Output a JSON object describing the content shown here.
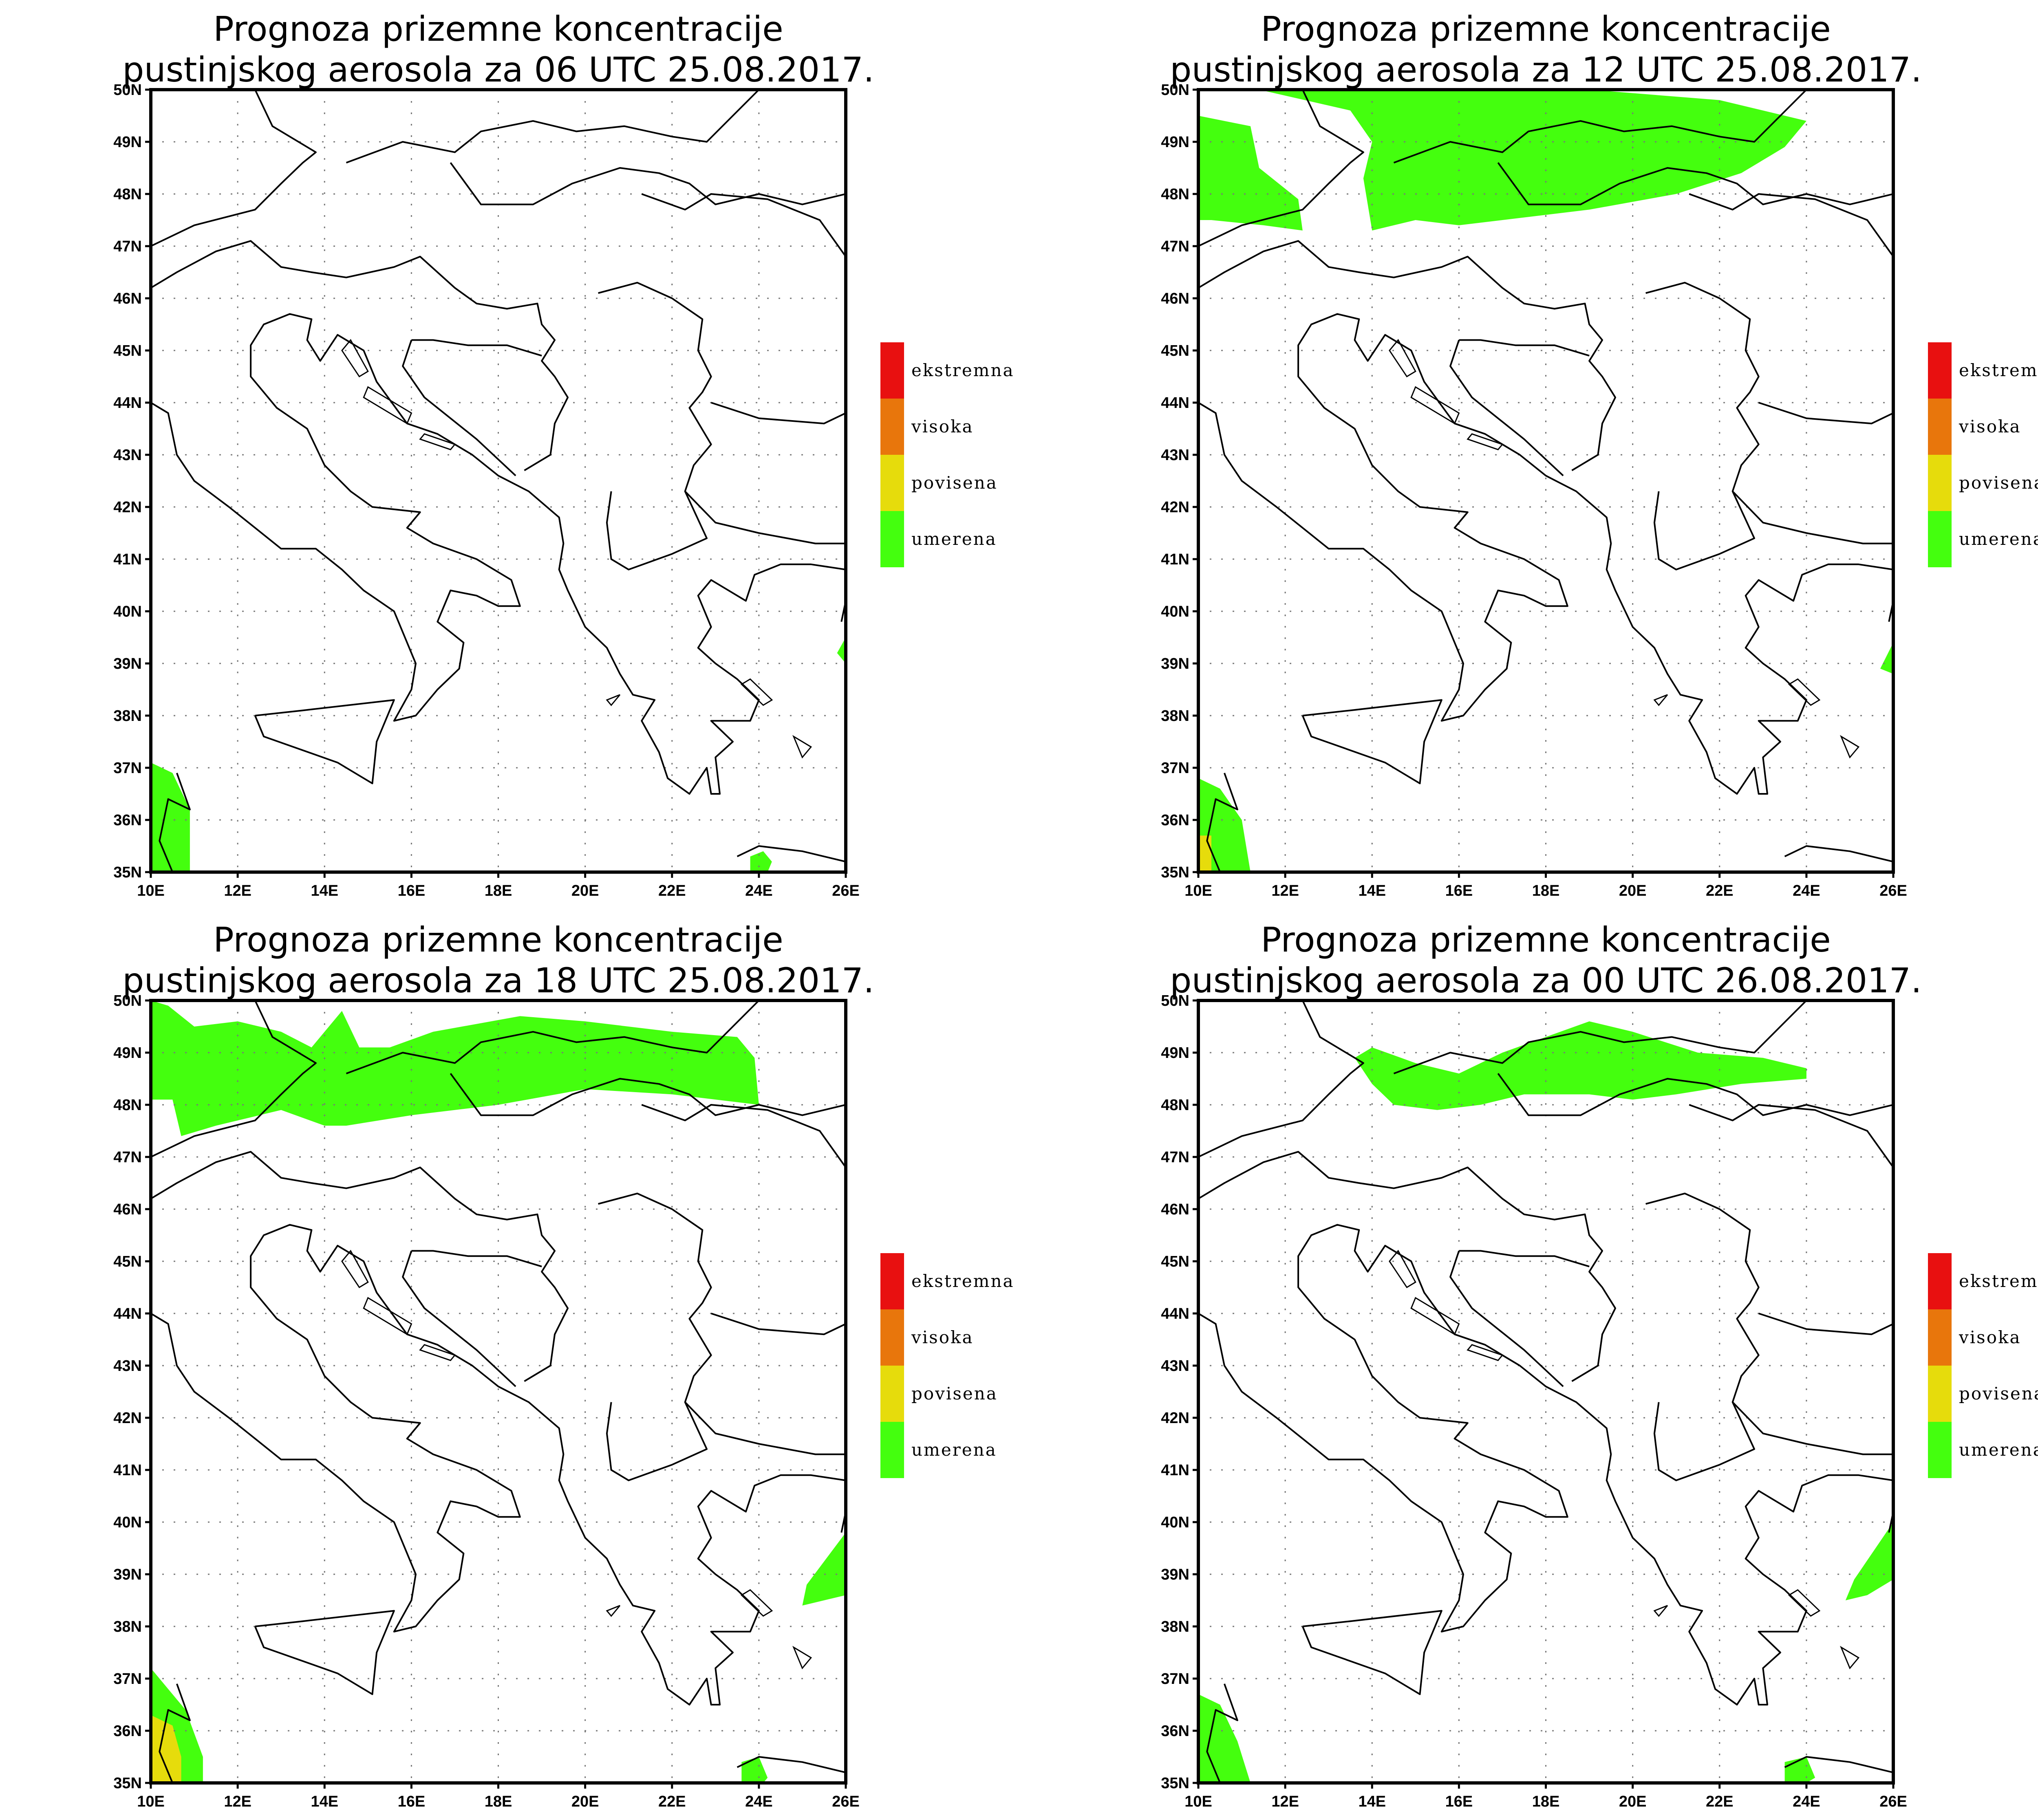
{
  "panels": [
    {
      "title_line1": "Prognoza prizemne koncentracije",
      "title_line2": "pustinjskog aerosola za 06 UTC 25.08.2017.",
      "blobs": [
        {
          "level": "umerena",
          "pts": [
            [
              10.0,
              35.0
            ],
            [
              10.0,
              37.1
            ],
            [
              10.5,
              36.9
            ],
            [
              10.9,
              36.2
            ],
            [
              10.9,
              35.0
            ]
          ]
        },
        {
          "level": "umerena",
          "pts": [
            [
              23.8,
              35.0
            ],
            [
              23.8,
              35.3
            ],
            [
              24.1,
              35.4
            ],
            [
              24.3,
              35.2
            ],
            [
              24.2,
              35.0
            ]
          ]
        },
        {
          "level": "umerena",
          "pts": [
            [
              25.8,
              39.2
            ],
            [
              26.0,
              39.5
            ],
            [
              26.0,
              39.0
            ]
          ]
        }
      ]
    },
    {
      "title_line1": "Prognoza prizemne koncentracije",
      "title_line2": "pustinjskog aerosola za 12 UTC 25.08.2017.",
      "blobs": [
        {
          "level": "umerena",
          "pts": [
            [
              10.0,
              49.5
            ],
            [
              11.2,
              49.3
            ],
            [
              11.4,
              48.5
            ],
            [
              12.3,
              47.9
            ],
            [
              12.4,
              47.3
            ],
            [
              11.5,
              47.4
            ],
            [
              10.3,
              47.5
            ],
            [
              10.0,
              47.5
            ]
          ]
        },
        {
          "level": "umerena",
          "pts": [
            [
              11.4,
              50.0
            ],
            [
              13.5,
              49.6
            ],
            [
              14.0,
              49.0
            ],
            [
              13.8,
              48.3
            ],
            [
              14.0,
              47.3
            ],
            [
              15.0,
              47.5
            ],
            [
              16.0,
              47.4
            ],
            [
              17.0,
              47.5
            ],
            [
              19.0,
              47.7
            ],
            [
              21.0,
              48.0
            ],
            [
              22.5,
              48.4
            ],
            [
              23.5,
              48.9
            ],
            [
              24.0,
              49.4
            ],
            [
              22.0,
              49.8
            ],
            [
              19.0,
              50.0
            ]
          ]
        },
        {
          "level": "umerena",
          "pts": [
            [
              10.0,
              35.0
            ],
            [
              10.0,
              36.8
            ],
            [
              10.5,
              36.6
            ],
            [
              11.0,
              36.0
            ],
            [
              11.2,
              35.0
            ]
          ]
        },
        {
          "level": "povisena",
          "pts": [
            [
              10.0,
              35.0
            ],
            [
              10.0,
              35.7
            ],
            [
              10.3,
              35.7
            ],
            [
              10.3,
              35.0
            ]
          ]
        },
        {
          "level": "umerena",
          "pts": [
            [
              25.7,
              38.9
            ],
            [
              26.0,
              39.4
            ],
            [
              26.0,
              38.8
            ]
          ]
        }
      ]
    },
    {
      "title_line1": "Prognoza prizemne koncentracije",
      "title_line2": "pustinjskog aerosola za 18 UTC 25.08.2017.",
      "blobs": [
        {
          "level": "umerena",
          "pts": [
            [
              10.0,
              50.0
            ],
            [
              10.4,
              49.9
            ],
            [
              11.0,
              49.5
            ],
            [
              12.0,
              49.6
            ],
            [
              13.0,
              49.4
            ],
            [
              13.7,
              49.1
            ],
            [
              14.4,
              49.8
            ],
            [
              14.8,
              49.1
            ],
            [
              15.5,
              49.1
            ],
            [
              16.5,
              49.4
            ],
            [
              18.5,
              49.7
            ],
            [
              20.0,
              49.6
            ],
            [
              22.0,
              49.4
            ],
            [
              23.5,
              49.3
            ],
            [
              23.9,
              48.9
            ],
            [
              24.0,
              48.0
            ],
            [
              22.0,
              48.2
            ],
            [
              20.0,
              48.3
            ],
            [
              18.0,
              48.0
            ],
            [
              16.0,
              47.8
            ],
            [
              14.5,
              47.6
            ],
            [
              14.0,
              47.6
            ],
            [
              13.0,
              47.9
            ],
            [
              11.5,
              47.6
            ],
            [
              10.7,
              47.4
            ],
            [
              10.5,
              48.1
            ],
            [
              10.0,
              48.1
            ]
          ]
        },
        {
          "level": "umerena",
          "pts": [
            [
              10.0,
              35.0
            ],
            [
              10.0,
              37.2
            ],
            [
              10.8,
              36.4
            ],
            [
              11.2,
              35.5
            ],
            [
              11.2,
              35.0
            ]
          ]
        },
        {
          "level": "povisena",
          "pts": [
            [
              10.0,
              35.0
            ],
            [
              10.0,
              36.3
            ],
            [
              10.5,
              36.1
            ],
            [
              10.7,
              35.5
            ],
            [
              10.7,
              35.0
            ]
          ]
        },
        {
          "level": "umerena",
          "pts": [
            [
              23.6,
              35.0
            ],
            [
              23.6,
              35.4
            ],
            [
              24.0,
              35.5
            ],
            [
              24.2,
              35.1
            ],
            [
              24.1,
              35.0
            ]
          ]
        },
        {
          "level": "umerena",
          "pts": [
            [
              25.0,
              38.4
            ],
            [
              25.1,
              38.8
            ],
            [
              26.0,
              39.8
            ],
            [
              26.0,
              38.6
            ],
            [
              25.5,
              38.5
            ]
          ]
        }
      ]
    },
    {
      "title_line1": "Prognoza prizemne koncentracije",
      "title_line2": "pustinjskog aerosola za 00 UTC 26.08.2017.",
      "blobs": [
        {
          "level": "umerena",
          "pts": [
            [
              13.6,
              48.9
            ],
            [
              14.0,
              49.1
            ],
            [
              15.0,
              48.8
            ],
            [
              16.0,
              48.6
            ],
            [
              17.0,
              49.0
            ],
            [
              18.0,
              49.3
            ],
            [
              19.0,
              49.6
            ],
            [
              20.0,
              49.4
            ],
            [
              21.5,
              49.0
            ],
            [
              23.0,
              48.9
            ],
            [
              24.0,
              48.7
            ],
            [
              24.0,
              48.5
            ],
            [
              22.5,
              48.4
            ],
            [
              21.0,
              48.2
            ],
            [
              20.0,
              48.1
            ],
            [
              19.0,
              48.2
            ],
            [
              17.5,
              48.2
            ],
            [
              16.5,
              48.0
            ],
            [
              15.5,
              47.9
            ],
            [
              14.5,
              48.0
            ],
            [
              14.0,
              48.4
            ]
          ]
        },
        {
          "level": "umerena",
          "pts": [
            [
              10.0,
              35.0
            ],
            [
              10.0,
              36.7
            ],
            [
              10.5,
              36.5
            ],
            [
              10.9,
              35.8
            ],
            [
              11.2,
              35.0
            ]
          ]
        },
        {
          "level": "umerena",
          "pts": [
            [
              23.5,
              35.0
            ],
            [
              23.5,
              35.4
            ],
            [
              24.0,
              35.5
            ],
            [
              24.2,
              35.1
            ],
            [
              24.0,
              35.0
            ]
          ]
        },
        {
          "level": "umerena",
          "pts": [
            [
              24.9,
              38.5
            ],
            [
              25.1,
              38.9
            ],
            [
              26.0,
              40.0
            ],
            [
              26.0,
              38.9
            ],
            [
              25.4,
              38.6
            ]
          ]
        }
      ]
    }
  ],
  "map_extent": {
    "lon": [
      10,
      26
    ],
    "lat": [
      35,
      50
    ]
  },
  "x_ticks": [
    "10E",
    "12E",
    "14E",
    "16E",
    "18E",
    "20E",
    "22E",
    "24E",
    "26E"
  ],
  "y_ticks": [
    "35N",
    "36N",
    "37N",
    "38N",
    "39N",
    "40N",
    "41N",
    "42N",
    "43N",
    "44N",
    "45N",
    "46N",
    "47N",
    "48N",
    "49N",
    "50N"
  ],
  "legend": [
    {
      "label": "ekstremna",
      "color": "#e81010"
    },
    {
      "label": "visoka",
      "color": "#e8760c"
    },
    {
      "label": "povisena",
      "color": "#e6dc0c"
    },
    {
      "label": "umerena",
      "color": "#44ff0e"
    }
  ],
  "colors": {
    "umerena": "#44ff0e",
    "povisena": "#e6dc0c",
    "visoka": "#e8760c",
    "ekstremna": "#e81010"
  }
}
